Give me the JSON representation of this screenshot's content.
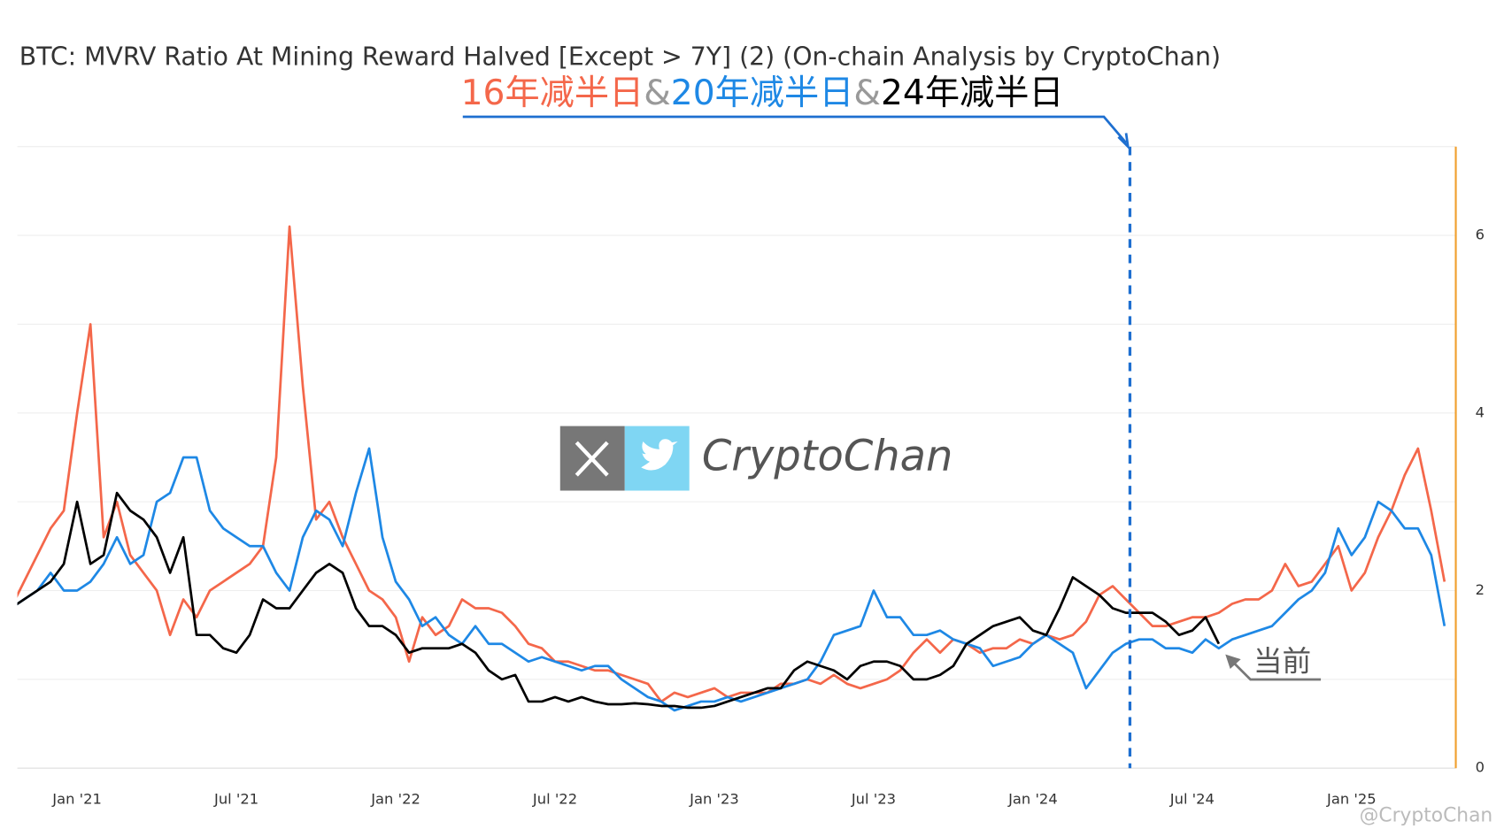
{
  "chart_data": {
    "type": "line",
    "title": "BTC: MVRV Ratio At Mining Reward Halved [Except > 7Y] (2) (On-chain Analysis by CryptoChan)",
    "legend_separator": "&",
    "annotation": "当前",
    "watermark": "CryptoChan",
    "credit": "@CryptoChan",
    "categories": [
      null,
      null,
      null,
      null,
      null,
      "Jan '21",
      null,
      null,
      null,
      null,
      null,
      null,
      null,
      null,
      null,
      null,
      null,
      "Jul '21",
      null,
      null,
      null,
      null,
      null,
      null,
      null,
      null,
      null,
      null,
      null,
      "Jan '22",
      null,
      null,
      null,
      null,
      null,
      null,
      null,
      null,
      null,
      null,
      null,
      "Jul '22",
      null,
      null,
      null,
      null,
      null,
      null,
      null,
      null,
      null,
      null,
      null,
      "Jan '23",
      null,
      null,
      null,
      null,
      null,
      null,
      null,
      null,
      null,
      null,
      null,
      "Jul '23",
      null,
      null,
      null,
      null,
      null,
      null,
      null,
      null,
      null,
      null,
      null,
      "Jan '24",
      null,
      null,
      null,
      null,
      null,
      null,
      null,
      null,
      null,
      null,
      null,
      "Jul '24",
      null,
      null,
      null,
      null,
      null,
      null,
      null,
      null,
      null,
      null,
      null,
      "Jan '25",
      null,
      null,
      null,
      null,
      null,
      null,
      null
    ],
    "series": [
      {
        "name": "16年减半日",
        "color": "#f4674a",
        "values": [
          1.8,
          2.1,
          2.4,
          2.7,
          2.9,
          4.0,
          5.0,
          2.6,
          3.0,
          2.4,
          2.2,
          2.0,
          1.5,
          1.9,
          1.7,
          2.0,
          2.1,
          2.2,
          2.3,
          2.5,
          3.5,
          6.1,
          4.3,
          2.8,
          3.0,
          2.6,
          2.3,
          2.0,
          1.9,
          1.7,
          1.2,
          1.7,
          1.5,
          1.6,
          1.9,
          1.8,
          1.8,
          1.75,
          1.6,
          1.4,
          1.35,
          1.2,
          1.2,
          1.15,
          1.1,
          1.1,
          1.05,
          1.0,
          0.95,
          0.75,
          0.85,
          0.8,
          0.85,
          0.9,
          0.8,
          0.85,
          0.85,
          0.85,
          0.95,
          0.95,
          1.0,
          0.95,
          1.05,
          0.95,
          0.9,
          0.95,
          1.0,
          1.1,
          1.3,
          1.45,
          1.3,
          1.45,
          1.4,
          1.3,
          1.35,
          1.35,
          1.45,
          1.4,
          1.5,
          1.45,
          1.5,
          1.65,
          1.95,
          2.05,
          1.9,
          1.75,
          1.6,
          1.6,
          1.65,
          1.7,
          1.7,
          1.75,
          1.85,
          1.9,
          1.9,
          2.0,
          2.3,
          2.05,
          2.1,
          2.3,
          2.5,
          2.0,
          2.2,
          2.6,
          2.9,
          3.3,
          3.6,
          2.9,
          2.1
        ]
      },
      {
        "name": "20年减半日",
        "color": "#1e88e5",
        "values": [
          1.8,
          1.9,
          2.0,
          2.2,
          2.0,
          2.0,
          2.1,
          2.3,
          2.6,
          2.3,
          2.4,
          3.0,
          3.1,
          3.5,
          3.5,
          2.9,
          2.7,
          2.6,
          2.5,
          2.5,
          2.2,
          2.0,
          2.6,
          2.9,
          2.8,
          2.5,
          3.1,
          3.6,
          2.6,
          2.1,
          1.9,
          1.6,
          1.7,
          1.5,
          1.4,
          1.6,
          1.4,
          1.4,
          1.3,
          1.2,
          1.25,
          1.2,
          1.15,
          1.1,
          1.15,
          1.15,
          1.0,
          0.9,
          0.8,
          0.75,
          0.65,
          0.7,
          0.75,
          0.75,
          0.8,
          0.75,
          0.8,
          0.85,
          0.9,
          0.95,
          1.0,
          1.2,
          1.5,
          1.55,
          1.6,
          2.0,
          1.7,
          1.7,
          1.5,
          1.5,
          1.55,
          1.45,
          1.4,
          1.35,
          1.15,
          1.2,
          1.25,
          1.4,
          1.5,
          1.4,
          1.3,
          0.9,
          1.1,
          1.3,
          1.4,
          1.45,
          1.45,
          1.35,
          1.35,
          1.3,
          1.45,
          1.35,
          1.45,
          1.5,
          1.55,
          1.6,
          1.75,
          1.9,
          2.0,
          2.2,
          2.7,
          2.4,
          2.6,
          3.0,
          2.9,
          2.7,
          2.7,
          2.4,
          1.6
        ]
      },
      {
        "name": "24年减半日",
        "color": "#000000",
        "values": [
          1.8,
          1.9,
          2.0,
          2.1,
          2.3,
          3.0,
          2.3,
          2.4,
          3.1,
          2.9,
          2.8,
          2.6,
          2.2,
          2.6,
          1.5,
          1.5,
          1.35,
          1.3,
          1.5,
          1.9,
          1.8,
          1.8,
          2.0,
          2.2,
          2.3,
          2.2,
          1.8,
          1.6,
          1.6,
          1.5,
          1.3,
          1.35,
          1.35,
          1.35,
          1.4,
          1.3,
          1.1,
          1.0,
          1.05,
          0.75,
          0.75,
          0.8,
          0.75,
          0.8,
          0.75,
          0.72,
          0.72,
          0.73,
          0.72,
          0.7,
          0.7,
          0.68,
          0.68,
          0.7,
          0.75,
          0.8,
          0.85,
          0.9,
          0.9,
          1.1,
          1.2,
          1.15,
          1.1,
          1.0,
          1.15,
          1.2,
          1.2,
          1.15,
          1.0,
          1.0,
          1.05,
          1.15,
          1.4,
          1.5,
          1.6,
          1.65,
          1.7,
          1.55,
          1.5,
          1.8,
          2.15,
          2.05,
          1.95,
          1.8,
          1.75,
          1.75,
          1.75,
          1.65,
          1.5,
          1.55,
          1.7,
          1.4,
          null,
          null,
          null,
          null,
          null,
          null,
          null,
          null,
          null,
          null,
          null,
          null,
          null,
          null,
          null,
          null,
          null
        ]
      }
    ],
    "ylim": [
      0,
      7
    ],
    "yticks": [
      0,
      2,
      4,
      6
    ],
    "minor_yticks": [
      1,
      3,
      5,
      7
    ],
    "grid": true
  }
}
